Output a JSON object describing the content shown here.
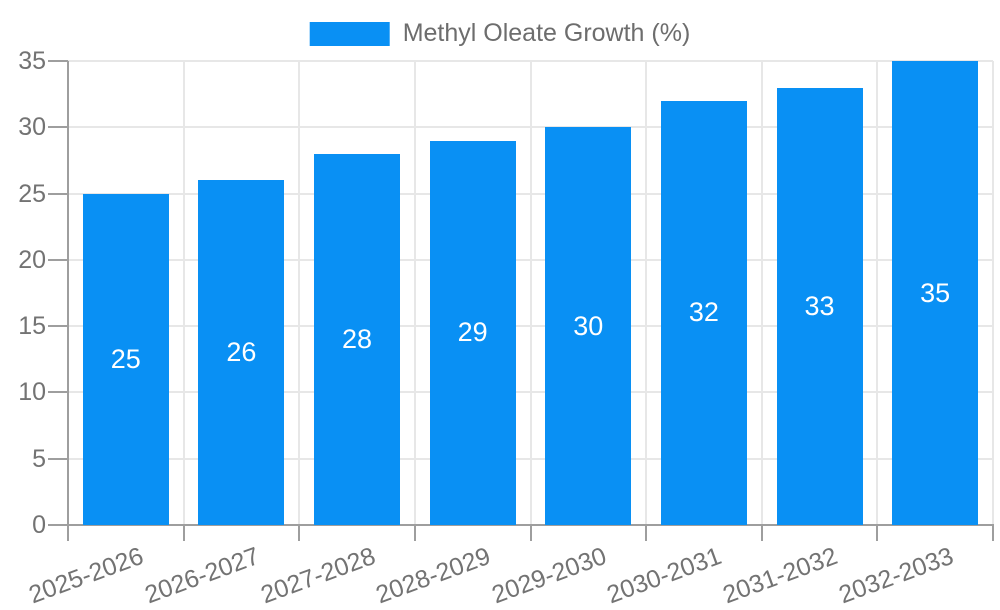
{
  "chart_data": {
    "type": "bar",
    "title": "",
    "legend": {
      "position": "top",
      "label": "Methyl Oleate Growth (%)"
    },
    "categories": [
      "2025-2026",
      "2026-2027",
      "2027-2028",
      "2028-2029",
      "2029-2030",
      "2030-2031",
      "2031-2032",
      "2032-2033"
    ],
    "series": [
      {
        "name": "Methyl Oleate Growth (%)",
        "values": [
          25,
          26,
          28,
          29,
          30,
          32,
          33,
          35
        ]
      }
    ],
    "value_labels": "inside-center",
    "xlabel": "",
    "ylabel": "",
    "ylim": [
      0,
      35
    ],
    "yticks": [
      0,
      5,
      10,
      15,
      20,
      25,
      30,
      35
    ],
    "grid": "on",
    "x_label_rotation_deg": -20,
    "colors": {
      "bar": "#0990f4",
      "grid": "#e7e7e7",
      "axis": "#9e9e9e",
      "tick_text": "#737373",
      "legend_text": "#6d6d6d",
      "value_label": "#ffffff",
      "background": "#ffffff"
    }
  }
}
